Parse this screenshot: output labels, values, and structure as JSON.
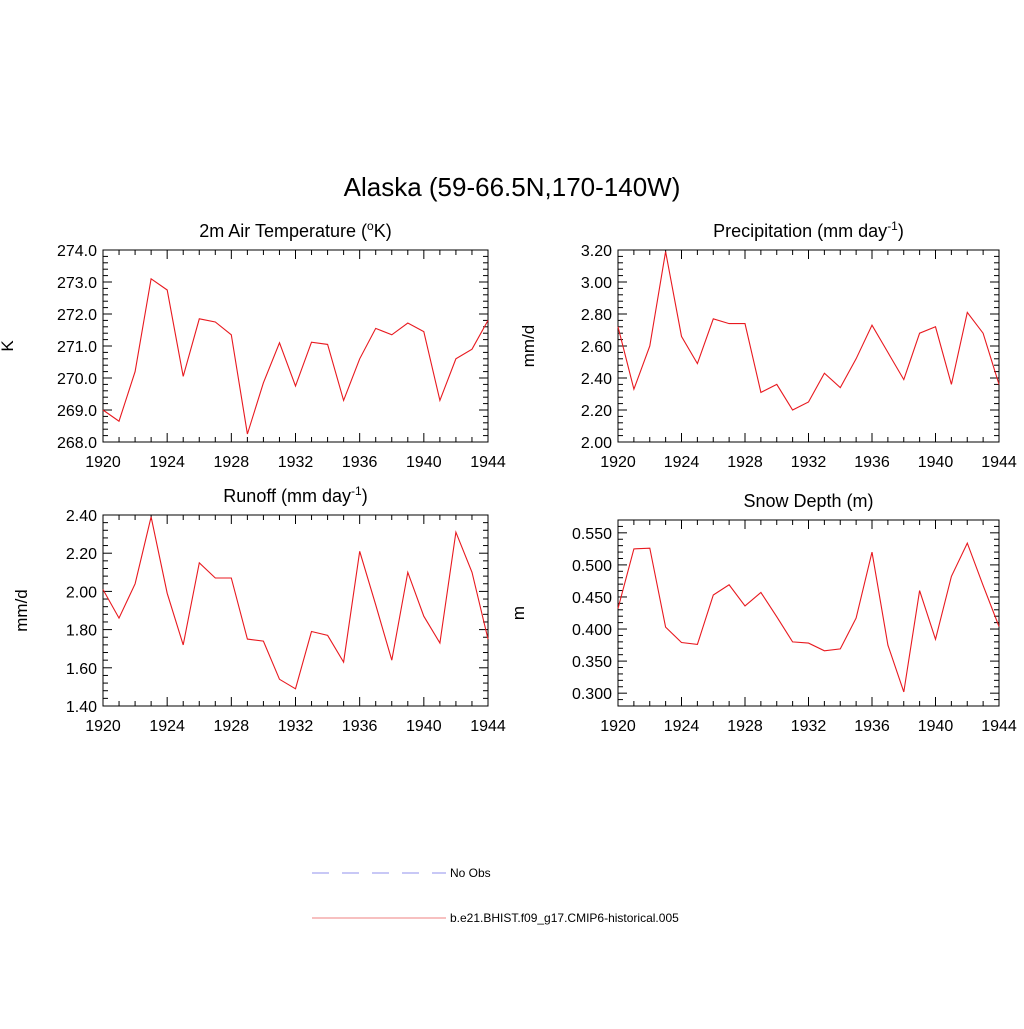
{
  "figure": {
    "title": "Alaska (59-66.5N,170-140W)"
  },
  "chart_data": [
    {
      "type": "line",
      "title": "2m Air Temperature (",
      "title_sup": "o",
      "title_after": "K)",
      "xlabel": "",
      "ylabel": "K",
      "xlim": [
        1920,
        1944
      ],
      "ylim": [
        268.0,
        274.0
      ],
      "xticks": [
        1920,
        1924,
        1928,
        1932,
        1936,
        1940,
        1944
      ],
      "yticks": [
        "268.0",
        "269.0",
        "270.0",
        "271.0",
        "272.0",
        "273.0",
        "274.0"
      ],
      "x": [
        1920,
        1921,
        1922,
        1923,
        1924,
        1925,
        1926,
        1927,
        1928,
        1929,
        1930,
        1931,
        1932,
        1933,
        1934,
        1935,
        1936,
        1937,
        1938,
        1939,
        1940,
        1941,
        1942,
        1943,
        1944
      ],
      "series": [
        {
          "color": "#e8191f",
          "values": [
            269.0,
            268.65,
            270.2,
            273.1,
            272.75,
            270.05,
            271.85,
            271.75,
            271.35,
            268.25,
            269.85,
            271.1,
            269.75,
            271.12,
            271.05,
            269.3,
            270.6,
            271.55,
            271.35,
            271.72,
            271.45,
            269.3,
            270.6,
            270.9,
            271.8
          ]
        }
      ]
    },
    {
      "type": "line",
      "title": "Precipitation (mm day",
      "title_sup": "-1",
      "title_after": ")",
      "xlabel": "",
      "ylabel": "mm/d",
      "xlim": [
        1920,
        1944
      ],
      "ylim": [
        2.0,
        3.2
      ],
      "xticks": [
        1920,
        1924,
        1928,
        1932,
        1936,
        1940,
        1944
      ],
      "yticks": [
        "2.00",
        "2.20",
        "2.40",
        "2.60",
        "2.80",
        "3.00",
        "3.20"
      ],
      "x": [
        1920,
        1921,
        1922,
        1923,
        1924,
        1925,
        1926,
        1927,
        1928,
        1929,
        1930,
        1931,
        1932,
        1933,
        1934,
        1935,
        1936,
        1937,
        1938,
        1939,
        1940,
        1941,
        1942,
        1943,
        1944
      ],
      "series": [
        {
          "color": "#e8191f",
          "values": [
            2.72,
            2.33,
            2.6,
            3.19,
            2.66,
            2.49,
            2.77,
            2.74,
            2.74,
            2.31,
            2.36,
            2.2,
            2.25,
            2.43,
            2.34,
            2.52,
            2.73,
            2.56,
            2.39,
            2.68,
            2.72,
            2.36,
            2.81,
            2.68,
            2.36
          ]
        }
      ]
    },
    {
      "type": "line",
      "title": "Runoff (mm day",
      "title_sup": "-1",
      "title_after": ")",
      "xlabel": "",
      "ylabel": "mm/d",
      "xlim": [
        1920,
        1944
      ],
      "ylim": [
        1.4,
        2.4
      ],
      "xticks": [
        1920,
        1924,
        1928,
        1932,
        1936,
        1940,
        1944
      ],
      "yticks": [
        "1.40",
        "1.60",
        "1.80",
        "2.00",
        "2.20",
        "2.40"
      ],
      "x": [
        1920,
        1921,
        1922,
        1923,
        1924,
        1925,
        1926,
        1927,
        1928,
        1929,
        1930,
        1931,
        1932,
        1933,
        1934,
        1935,
        1936,
        1937,
        1938,
        1939,
        1940,
        1941,
        1942,
        1943,
        1944
      ],
      "series": [
        {
          "color": "#e8191f",
          "values": [
            2.01,
            1.86,
            2.04,
            2.39,
            1.99,
            1.72,
            2.15,
            2.07,
            2.07,
            1.75,
            1.74,
            1.54,
            1.49,
            1.79,
            1.77,
            1.63,
            2.21,
            1.93,
            1.64,
            2.1,
            1.87,
            1.73,
            2.31,
            2.1,
            1.75
          ]
        }
      ]
    },
    {
      "type": "line",
      "title": "Snow Depth (m)",
      "title_sup": "",
      "title_after": "",
      "xlabel": "",
      "ylabel": "m",
      "xlim": [
        1920,
        1944
      ],
      "ylim": [
        0.28,
        0.57
      ],
      "xticks": [
        1920,
        1924,
        1928,
        1932,
        1936,
        1940,
        1944
      ],
      "yticks": [
        "0.300",
        "0.350",
        "0.400",
        "0.450",
        "0.500",
        "0.550"
      ],
      "x": [
        1920,
        1921,
        1922,
        1923,
        1924,
        1925,
        1926,
        1927,
        1928,
        1929,
        1930,
        1931,
        1932,
        1933,
        1934,
        1935,
        1936,
        1937,
        1938,
        1939,
        1940,
        1941,
        1942,
        1943,
        1944
      ],
      "series": [
        {
          "color": "#e8191f",
          "values": [
            0.432,
            0.525,
            0.526,
            0.403,
            0.379,
            0.376,
            0.453,
            0.469,
            0.436,
            0.457,
            0.419,
            0.38,
            0.378,
            0.366,
            0.369,
            0.417,
            0.52,
            0.375,
            0.302,
            0.46,
            0.384,
            0.482,
            0.534,
            0.468,
            0.404
          ]
        }
      ]
    }
  ],
  "legend": {
    "position": "bottom-center",
    "items": [
      {
        "label": "No Obs",
        "color": "#a8a8f0",
        "style": "dashed"
      },
      {
        "label": "b.e21.BHIST.f09_g17.CMIP6-historical.005",
        "color": "#f29a9a",
        "style": "solid"
      }
    ]
  }
}
